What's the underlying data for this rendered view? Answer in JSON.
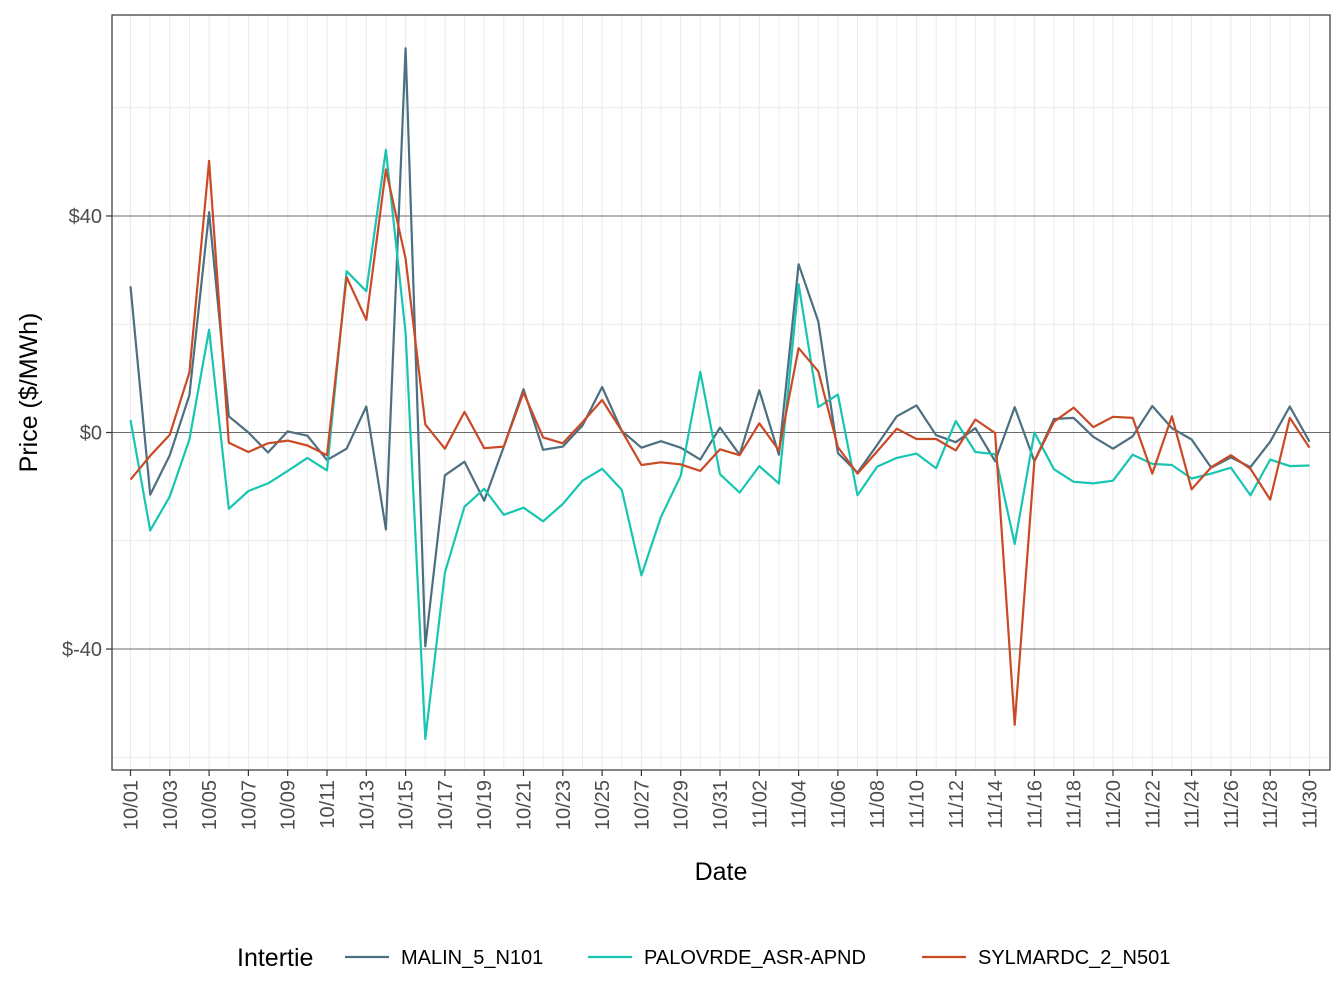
{
  "chart_data": {
    "type": "line",
    "xlabel": "Date",
    "ylabel": "Price ($/MWh)",
    "ylim": [
      -61,
      77
    ],
    "y_ticks": [
      {
        "value": 40,
        "label": "$40"
      },
      {
        "value": 0,
        "label": "$0"
      },
      {
        "value": -40,
        "label": "$-40"
      }
    ],
    "x_tick_labels": [
      "10/01",
      "10/03",
      "10/05",
      "10/07",
      "10/09",
      "10/11",
      "10/13",
      "10/15",
      "10/17",
      "10/19",
      "10/21",
      "10/23",
      "10/25",
      "10/27",
      "10/29",
      "10/31",
      "11/02",
      "11/04",
      "11/06",
      "11/08",
      "11/10",
      "11/12",
      "11/14",
      "11/16",
      "11/18",
      "11/20",
      "11/22",
      "11/24",
      "11/26",
      "11/28",
      "11/30"
    ],
    "x": [
      "10/01",
      "10/02",
      "10/03",
      "10/04",
      "10/05",
      "10/06",
      "10/07",
      "10/08",
      "10/09",
      "10/10",
      "10/11",
      "10/12",
      "10/13",
      "10/14",
      "10/15",
      "10/16",
      "10/17",
      "10/18",
      "10/19",
      "10/20",
      "10/21",
      "10/22",
      "10/23",
      "10/24",
      "10/25",
      "10/26",
      "10/27",
      "10/28",
      "10/29",
      "10/30",
      "10/31",
      "11/01",
      "11/02",
      "11/03",
      "11/04",
      "11/05",
      "11/06",
      "11/07",
      "11/08",
      "11/09",
      "11/10",
      "11/11",
      "11/12",
      "11/13",
      "11/14",
      "11/15",
      "11/16",
      "11/17",
      "11/18",
      "11/19",
      "11/20",
      "11/21",
      "11/22",
      "11/23",
      "11/24",
      "11/25",
      "11/26",
      "11/27",
      "11/28",
      "11/29",
      "11/30"
    ],
    "grid": true,
    "legend": {
      "title": "Intertie",
      "position": "bottom"
    },
    "series": [
      {
        "name": "MALIN_5_N101",
        "color": "#4d6f82",
        "values": [
          27.0,
          -11.5,
          -4.2,
          6.9,
          40.7,
          3.0,
          0.0,
          -3.7,
          0.2,
          -0.6,
          -5.1,
          -3.0,
          4.8,
          -17.9,
          71.0,
          -39.5,
          -7.9,
          -5.4,
          -12.6,
          -2.6,
          8.0,
          -3.2,
          -2.6,
          1.3,
          8.4,
          0.3,
          -2.8,
          -1.6,
          -2.8,
          -5.0,
          0.9,
          -4.1,
          7.8,
          -4.1,
          31.1,
          20.5,
          -3.8,
          -7.4,
          -2.3,
          3.0,
          5.0,
          -0.5,
          -1.8,
          0.8,
          -5.3,
          4.7,
          -5.3,
          2.5,
          2.7,
          -0.8,
          -3.0,
          -0.7,
          4.9,
          0.8,
          -1.3,
          -6.5,
          -4.6,
          -6.4,
          -1.7,
          4.8,
          -1.7
        ]
      },
      {
        "name": "PALOVRDE_ASR-APND",
        "color": "#18c5b1",
        "values": [
          2.3,
          -18.1,
          -11.8,
          -1.3,
          19.0,
          -14.1,
          -10.8,
          -9.4,
          -7.1,
          -4.7,
          -7.0,
          29.8,
          26.1,
          52.2,
          18.4,
          -56.6,
          -25.9,
          -13.7,
          -10.4,
          -15.2,
          -13.9,
          -16.4,
          -13.2,
          -8.9,
          -6.7,
          -10.6,
          -26.4,
          -15.6,
          -8.0,
          11.2,
          -7.7,
          -11.1,
          -6.2,
          -9.4,
          27.4,
          4.7,
          7.0,
          -11.6,
          -6.3,
          -4.7,
          -3.9,
          -6.6,
          2.1,
          -3.6,
          -4.0,
          -20.6,
          0.0,
          -6.8,
          -9.1,
          -9.4,
          -8.9,
          -4.1,
          -5.8,
          -6.0,
          -8.5,
          -7.6,
          -6.5,
          -11.6,
          -5.0,
          -6.2,
          -6.1
        ]
      },
      {
        "name": "SYLMARDC_2_N501",
        "color": "#c94a25",
        "values": [
          -8.7,
          -4.3,
          -0.4,
          11.1,
          50.2,
          -1.9,
          -3.6,
          -2.0,
          -1.5,
          -2.4,
          -4.2,
          28.7,
          20.8,
          48.6,
          32.1,
          1.5,
          -3.0,
          3.8,
          -2.9,
          -2.6,
          7.4,
          -0.9,
          -2.0,
          1.9,
          6.0,
          0.3,
          -6.0,
          -5.5,
          -5.9,
          -7.1,
          -3.1,
          -4.2,
          1.7,
          -3.3,
          15.6,
          11.3,
          -2.7,
          -7.6,
          -3.5,
          0.7,
          -1.2,
          -1.2,
          -3.3,
          2.4,
          -0.1,
          -54.0,
          -5.3,
          2.0,
          4.6,
          1.0,
          2.9,
          2.7,
          -7.6,
          3.0,
          -10.5,
          -6.4,
          -4.2,
          -6.7,
          -12.4,
          2.7,
          -2.8
        ]
      }
    ]
  }
}
